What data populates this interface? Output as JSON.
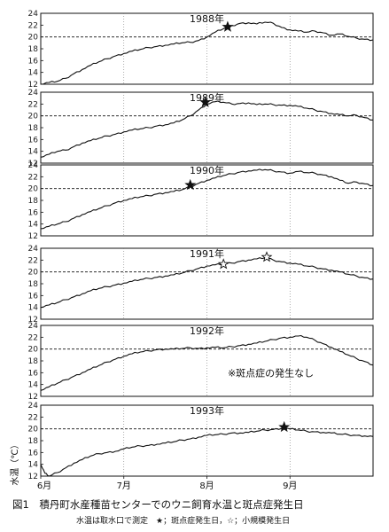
{
  "chart_data": {
    "type": "line",
    "title": "図1　積丹町水産種苗センターでのウニ飼育水温と斑点症発生日",
    "note": "水温は取水口で測定　★；斑点症発生日，☆；小規模発生日",
    "ylabel": "水温（℃）",
    "xtick_labels": [
      "6月",
      "7月",
      "8月",
      "9月"
    ],
    "x_months": [
      6,
      7,
      8,
      9,
      10
    ],
    "ylim": [
      12,
      24
    ],
    "yticks": [
      12,
      14,
      16,
      18,
      20,
      22,
      24
    ],
    "reference_line": 20,
    "marker_legend": {
      "major": "★",
      "minor": "☆"
    },
    "panels": [
      {
        "label": "1988年",
        "points": [
          [
            6.0,
            12.0
          ],
          [
            6.1,
            12.3
          ],
          [
            6.2,
            12.5
          ],
          [
            6.3,
            13.0
          ],
          [
            6.4,
            13.8
          ],
          [
            6.5,
            14.5
          ],
          [
            6.6,
            15.2
          ],
          [
            6.7,
            15.8
          ],
          [
            6.8,
            16.3
          ],
          [
            6.9,
            16.8
          ],
          [
            7.0,
            17.2
          ],
          [
            7.1,
            17.6
          ],
          [
            7.2,
            17.9
          ],
          [
            7.3,
            18.2
          ],
          [
            7.4,
            18.4
          ],
          [
            7.5,
            18.6
          ],
          [
            7.6,
            18.8
          ],
          [
            7.7,
            19.0
          ],
          [
            7.8,
            19.1
          ],
          [
            7.9,
            19.4
          ],
          [
            8.0,
            20.0
          ],
          [
            8.1,
            20.8
          ],
          [
            8.2,
            21.4
          ],
          [
            8.3,
            21.9
          ],
          [
            8.4,
            22.3
          ],
          [
            8.5,
            22.4
          ],
          [
            8.6,
            22.2
          ],
          [
            8.7,
            22.5
          ],
          [
            8.8,
            22.3
          ],
          [
            8.9,
            21.6
          ],
          [
            9.0,
            21.2
          ],
          [
            9.1,
            21.0
          ],
          [
            9.2,
            20.8
          ],
          [
            9.3,
            21.0
          ],
          [
            9.4,
            20.7
          ],
          [
            9.5,
            20.3
          ],
          [
            9.6,
            20.5
          ],
          [
            9.7,
            20.1
          ],
          [
            9.8,
            19.8
          ],
          [
            9.9,
            19.6
          ],
          [
            10.0,
            19.5
          ]
        ],
        "markers": [
          {
            "kind": "major",
            "x": 8.25,
            "y": 21.7
          }
        ]
      },
      {
        "label": "1989年",
        "points": [
          [
            6.0,
            13.0
          ],
          [
            6.1,
            13.5
          ],
          [
            6.2,
            14.0
          ],
          [
            6.3,
            14.2
          ],
          [
            6.4,
            14.8
          ],
          [
            6.5,
            15.4
          ],
          [
            6.6,
            15.8
          ],
          [
            6.7,
            16.2
          ],
          [
            6.8,
            16.6
          ],
          [
            6.9,
            16.9
          ],
          [
            7.0,
            17.3
          ],
          [
            7.1,
            17.6
          ],
          [
            7.2,
            17.8
          ],
          [
            7.3,
            18.0
          ],
          [
            7.4,
            18.3
          ],
          [
            7.5,
            18.5
          ],
          [
            7.6,
            18.8
          ],
          [
            7.7,
            19.3
          ],
          [
            7.8,
            20.0
          ],
          [
            7.9,
            21.0
          ],
          [
            8.0,
            22.0
          ],
          [
            8.1,
            22.4
          ],
          [
            8.2,
            22.3
          ],
          [
            8.3,
            22.0
          ],
          [
            8.4,
            22.1
          ],
          [
            8.5,
            22.2
          ],
          [
            8.6,
            21.9
          ],
          [
            8.7,
            22.0
          ],
          [
            8.8,
            21.9
          ],
          [
            8.9,
            21.8
          ],
          [
            9.0,
            21.8
          ],
          [
            9.1,
            21.6
          ],
          [
            9.2,
            21.3
          ],
          [
            9.3,
            21.0
          ],
          [
            9.4,
            20.7
          ],
          [
            9.5,
            20.4
          ],
          [
            9.6,
            20.2
          ],
          [
            9.7,
            20.0
          ],
          [
            9.8,
            20.1
          ],
          [
            9.9,
            19.7
          ],
          [
            10.0,
            19.3
          ]
        ],
        "markers": [
          {
            "kind": "major",
            "x": 7.98,
            "y": 22.3
          }
        ]
      },
      {
        "label": "1990年",
        "points": [
          [
            6.0,
            13.2
          ],
          [
            6.1,
            13.6
          ],
          [
            6.2,
            14.0
          ],
          [
            6.3,
            14.4
          ],
          [
            6.4,
            15.0
          ],
          [
            6.5,
            15.6
          ],
          [
            6.6,
            16.1
          ],
          [
            6.7,
            16.6
          ],
          [
            6.8,
            17.1
          ],
          [
            6.9,
            17.6
          ],
          [
            7.0,
            18.0
          ],
          [
            7.1,
            18.3
          ],
          [
            7.2,
            18.6
          ],
          [
            7.3,
            18.8
          ],
          [
            7.4,
            19.1
          ],
          [
            7.5,
            19.3
          ],
          [
            7.6,
            19.5
          ],
          [
            7.7,
            19.8
          ],
          [
            7.8,
            20.3
          ],
          [
            7.9,
            20.9
          ],
          [
            8.0,
            21.4
          ],
          [
            8.1,
            21.8
          ],
          [
            8.2,
            22.2
          ],
          [
            8.3,
            22.5
          ],
          [
            8.4,
            22.8
          ],
          [
            8.5,
            23.0
          ],
          [
            8.6,
            23.1
          ],
          [
            8.7,
            23.2
          ],
          [
            8.8,
            23.0
          ],
          [
            8.9,
            22.8
          ],
          [
            9.0,
            22.6
          ],
          [
            9.1,
            22.9
          ],
          [
            9.2,
            22.7
          ],
          [
            9.3,
            22.6
          ],
          [
            9.4,
            22.3
          ],
          [
            9.5,
            22.0
          ],
          [
            9.6,
            21.4
          ],
          [
            9.7,
            20.9
          ],
          [
            9.8,
            21.1
          ],
          [
            9.9,
            20.8
          ],
          [
            10.0,
            20.5
          ]
        ],
        "markers": [
          {
            "kind": "major",
            "x": 7.8,
            "y": 20.6
          }
        ]
      },
      {
        "label": "1991年",
        "points": [
          [
            6.0,
            14.0
          ],
          [
            6.1,
            14.4
          ],
          [
            6.2,
            14.8
          ],
          [
            6.3,
            15.3
          ],
          [
            6.4,
            15.8
          ],
          [
            6.5,
            16.3
          ],
          [
            6.6,
            16.8
          ],
          [
            6.7,
            17.2
          ],
          [
            6.8,
            17.5
          ],
          [
            6.9,
            17.8
          ],
          [
            7.0,
            18.1
          ],
          [
            7.1,
            18.4
          ],
          [
            7.2,
            18.7
          ],
          [
            7.3,
            18.9
          ],
          [
            7.4,
            19.1
          ],
          [
            7.5,
            19.3
          ],
          [
            7.6,
            19.5
          ],
          [
            7.7,
            19.8
          ],
          [
            7.8,
            20.2
          ],
          [
            7.9,
            20.6
          ],
          [
            8.0,
            21.0
          ],
          [
            8.1,
            21.2
          ],
          [
            8.2,
            21.3
          ],
          [
            8.3,
            21.5
          ],
          [
            8.4,
            21.8
          ],
          [
            8.5,
            22.0
          ],
          [
            8.6,
            22.2
          ],
          [
            8.7,
            22.4
          ],
          [
            8.8,
            22.0
          ],
          [
            8.9,
            21.7
          ],
          [
            9.0,
            21.5
          ],
          [
            9.1,
            21.3
          ],
          [
            9.2,
            21.0
          ],
          [
            9.3,
            20.8
          ],
          [
            9.4,
            20.5
          ],
          [
            9.5,
            20.3
          ],
          [
            9.6,
            20.0
          ],
          [
            9.7,
            19.6
          ],
          [
            9.8,
            19.3
          ],
          [
            9.9,
            19.0
          ],
          [
            10.0,
            18.8
          ]
        ],
        "markers": [
          {
            "kind": "minor",
            "x": 8.2,
            "y": 21.3
          },
          {
            "kind": "minor",
            "x": 8.72,
            "y": 22.5
          }
        ]
      },
      {
        "label": "1992年",
        "note": "※斑点症の発生なし",
        "points": [
          [
            6.0,
            13.0
          ],
          [
            6.1,
            13.6
          ],
          [
            6.2,
            14.2
          ],
          [
            6.3,
            14.8
          ],
          [
            6.4,
            15.4
          ],
          [
            6.5,
            16.0
          ],
          [
            6.6,
            16.6
          ],
          [
            6.7,
            17.2
          ],
          [
            6.8,
            17.8
          ],
          [
            6.9,
            18.3
          ],
          [
            7.0,
            18.8
          ],
          [
            7.1,
            19.2
          ],
          [
            7.2,
            19.5
          ],
          [
            7.3,
            19.7
          ],
          [
            7.4,
            19.9
          ],
          [
            7.5,
            20.0
          ],
          [
            7.6,
            20.0
          ],
          [
            7.7,
            20.1
          ],
          [
            7.8,
            20.2
          ],
          [
            7.9,
            20.1
          ],
          [
            8.0,
            20.2
          ],
          [
            8.1,
            20.3
          ],
          [
            8.2,
            20.2
          ],
          [
            8.3,
            20.4
          ],
          [
            8.4,
            20.6
          ],
          [
            8.5,
            20.8
          ],
          [
            8.6,
            21.0
          ],
          [
            8.7,
            21.3
          ],
          [
            8.8,
            21.6
          ],
          [
            8.9,
            21.9
          ],
          [
            9.0,
            22.0
          ],
          [
            9.1,
            22.2
          ],
          [
            9.2,
            22.0
          ],
          [
            9.3,
            21.5
          ],
          [
            9.4,
            20.9
          ],
          [
            9.5,
            20.3
          ],
          [
            9.6,
            19.6
          ],
          [
            9.7,
            19.0
          ],
          [
            9.8,
            18.4
          ],
          [
            9.9,
            17.9
          ],
          [
            10.0,
            17.3
          ]
        ],
        "markers": []
      },
      {
        "label": "1993年",
        "points": [
          [
            6.0,
            14.0
          ],
          [
            6.05,
            12.5
          ],
          [
            6.1,
            12.0
          ],
          [
            6.2,
            12.6
          ],
          [
            6.3,
            13.4
          ],
          [
            6.4,
            14.2
          ],
          [
            6.5,
            14.8
          ],
          [
            6.6,
            15.4
          ],
          [
            6.7,
            15.8
          ],
          [
            6.8,
            16.0
          ],
          [
            6.9,
            16.2
          ],
          [
            7.0,
            16.6
          ],
          [
            7.1,
            16.9
          ],
          [
            7.2,
            17.1
          ],
          [
            7.3,
            17.2
          ],
          [
            7.4,
            17.4
          ],
          [
            7.5,
            17.6
          ],
          [
            7.6,
            17.8
          ],
          [
            7.7,
            18.1
          ],
          [
            7.8,
            18.3
          ],
          [
            7.9,
            18.6
          ],
          [
            8.0,
            18.9
          ],
          [
            8.1,
            19.0
          ],
          [
            8.2,
            19.1
          ],
          [
            8.3,
            19.3
          ],
          [
            8.4,
            19.3
          ],
          [
            8.5,
            19.4
          ],
          [
            8.6,
            19.6
          ],
          [
            8.7,
            19.8
          ],
          [
            8.8,
            19.9
          ],
          [
            8.9,
            20.1
          ],
          [
            9.0,
            20.0
          ],
          [
            9.1,
            19.8
          ],
          [
            9.2,
            19.6
          ],
          [
            9.3,
            19.5
          ],
          [
            9.4,
            19.4
          ],
          [
            9.5,
            19.3
          ],
          [
            9.6,
            19.1
          ],
          [
            9.7,
            19.0
          ],
          [
            9.8,
            18.9
          ],
          [
            9.9,
            18.8
          ],
          [
            10.0,
            18.7
          ]
        ],
        "markers": [
          {
            "kind": "major",
            "x": 8.93,
            "y": 20.3
          }
        ]
      }
    ]
  }
}
